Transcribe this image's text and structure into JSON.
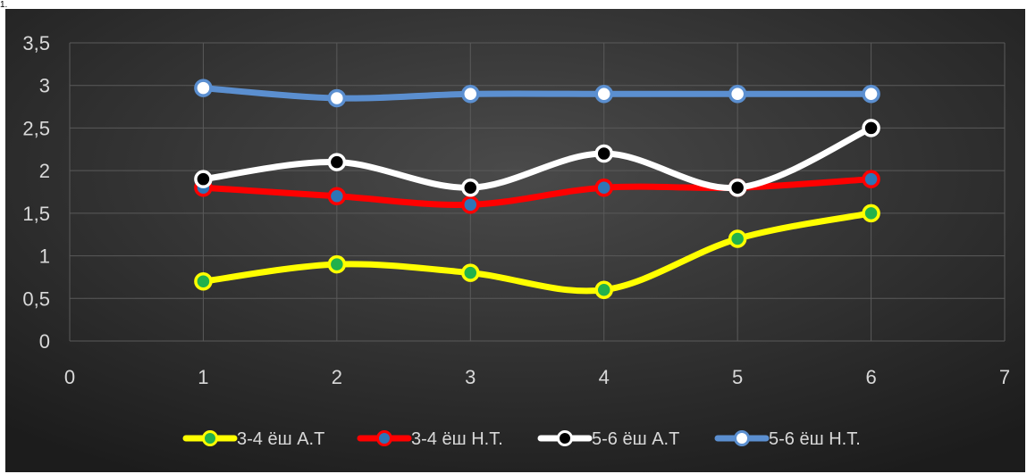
{
  "page_fragment": "1.",
  "chart_data": {
    "type": "line",
    "title": "",
    "xlabel": "",
    "ylabel": "",
    "xlim": [
      0,
      7
    ],
    "ylim": [
      0,
      3.5
    ],
    "x_ticks": [
      "0",
      "1",
      "2",
      "3",
      "4",
      "5",
      "6",
      "7"
    ],
    "y_ticks": [
      "0",
      "0,5",
      "1",
      "1,5",
      "2",
      "2,5",
      "3",
      "3,5"
    ],
    "grid": true,
    "legend_position": "bottom",
    "smooth": true,
    "background": "#2b2b2b",
    "series": [
      {
        "name": "3-4 ёш А.Т",
        "color": "#ffff00",
        "marker_fill": "#22b14c",
        "x": [
          1,
          2,
          3,
          4,
          5,
          6
        ],
        "y": [
          0.7,
          0.9,
          0.8,
          0.6,
          1.2,
          1.5
        ]
      },
      {
        "name": "3-4 ёш Н.Т.",
        "color": "#ff0000",
        "marker_fill": "#2e75b6",
        "x": [
          1,
          2,
          3,
          4,
          5,
          6
        ],
        "y": [
          1.8,
          1.7,
          1.6,
          1.8,
          1.8,
          1.9
        ]
      },
      {
        "name": "5-6 ёш А.Т",
        "color": "#ffffff",
        "marker_fill": "#000000",
        "x": [
          1,
          2,
          3,
          4,
          5,
          6
        ],
        "y": [
          1.9,
          2.1,
          1.8,
          2.2,
          1.8,
          2.5
        ]
      },
      {
        "name": "5-6 ёш Н.Т.",
        "color": "#5b8fd0",
        "marker_fill": "#ffffff",
        "x": [
          1,
          2,
          3,
          4,
          5,
          6
        ],
        "y": [
          2.97,
          2.85,
          2.9,
          2.9,
          2.9,
          2.9
        ]
      }
    ]
  }
}
